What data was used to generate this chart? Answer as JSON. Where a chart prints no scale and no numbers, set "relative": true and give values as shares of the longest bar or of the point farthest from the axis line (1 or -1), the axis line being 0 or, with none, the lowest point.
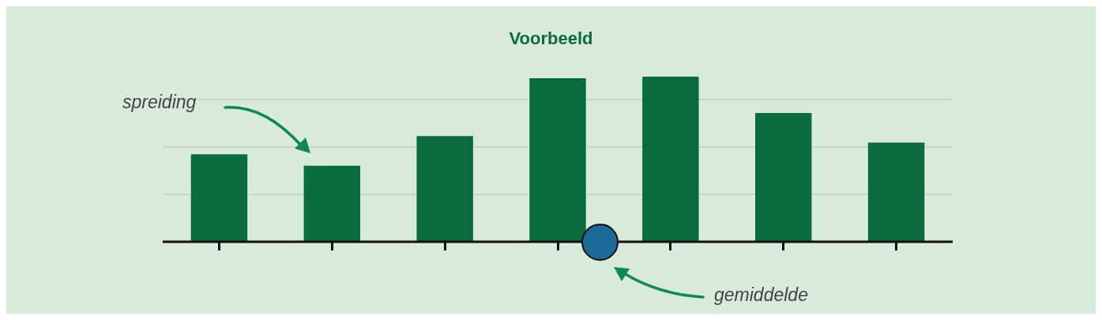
{
  "chart_data": {
    "type": "bar",
    "title": "Voorbeeld",
    "relative": true,
    "categories": [
      null,
      null,
      null,
      null,
      null,
      null,
      null
    ],
    "values": [
      0.53,
      0.46,
      0.64,
      0.99,
      1,
      0.78,
      0.6
    ],
    "color": "#0a6b3d",
    "grid": "y",
    "annotations": [
      "spreiding",
      "gemiddelde"
    ]
  }
}
